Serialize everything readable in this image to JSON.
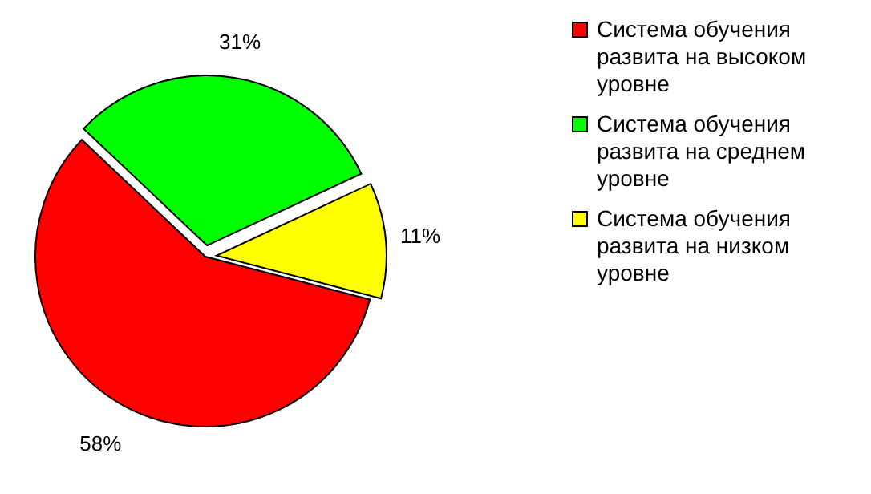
{
  "chart_data": {
    "type": "pie",
    "categories": [
      "Система обучения развита на высоком уровне",
      "Система обучения развита на среднем уровне",
      "Система обучения развита на низком уровне"
    ],
    "values": [
      58,
      31,
      11
    ],
    "colors": [
      "#ff0000",
      "#00ff00",
      "#ffff00"
    ],
    "value_labels": [
      "58%",
      "31%",
      "11%"
    ],
    "legend": "right"
  }
}
